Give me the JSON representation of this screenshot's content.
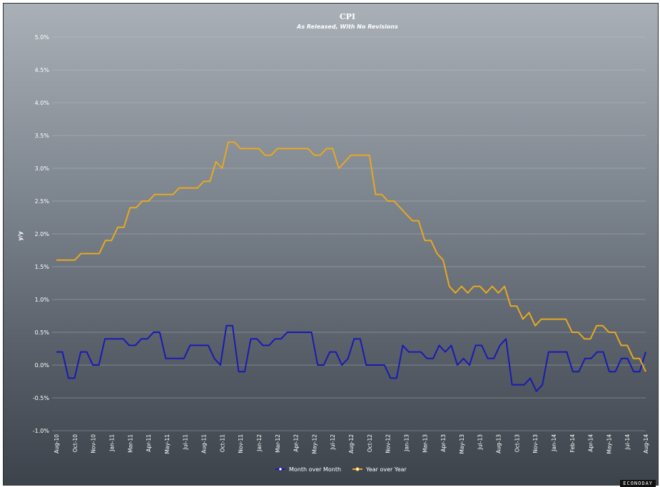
{
  "chart_data": {
    "type": "line",
    "title": "CPI",
    "subtitle": "As Released, With No Revisions",
    "ylabel": "y/y",
    "xlabel": "",
    "ylim": [
      -1.0,
      5.0
    ],
    "yticks": [
      "-1.0%",
      "-0.5%",
      "0.0%",
      "0.5%",
      "1.0%",
      "1.5%",
      "2.0%",
      "2.5%",
      "3.0%",
      "3.5%",
      "4.0%",
      "4.5%",
      "5.0%"
    ],
    "xtick_labels": [
      "Aug-10",
      "Oct-10",
      "Nov-10",
      "Jan-11",
      "Mar-11",
      "Apr-11",
      "May-11",
      "Jul-11",
      "Aug-11",
      "Oct-11",
      "Nov-11",
      "Jan-12",
      "Mar-12",
      "Apr-12",
      "May-12",
      "Jul-12",
      "Aug-12",
      "Oct-12",
      "Nov-12",
      "Jan-13",
      "Mar-13",
      "Apr-13",
      "May-13",
      "Jul-13",
      "Aug-13",
      "Oct-13",
      "Nov-13",
      "Jan-14",
      "Feb-14",
      "Apr-14",
      "May-14",
      "Jul-14",
      "Aug-14"
    ],
    "grid": true,
    "legend_position": "bottom-center",
    "series": [
      {
        "name": "Month over Month",
        "color": "#1a1ab4",
        "values": [
          0.2,
          0.2,
          -0.2,
          -0.2,
          0.2,
          0.2,
          0.0,
          0.0,
          0.4,
          0.4,
          0.4,
          0.4,
          0.3,
          0.3,
          0.4,
          0.4,
          0.5,
          0.5,
          0.1,
          0.1,
          0.1,
          0.1,
          0.3,
          0.3,
          0.3,
          0.3,
          0.1,
          0.0,
          0.6,
          0.6,
          -0.1,
          -0.1,
          0.4,
          0.4,
          0.3,
          0.3,
          0.4,
          0.4,
          0.5,
          0.5,
          0.5,
          0.5,
          0.5,
          0.0,
          0.0,
          0.2,
          0.2,
          0.0,
          0.1,
          0.4,
          0.4,
          0.0,
          0.0,
          0.0,
          0.0,
          -0.2,
          -0.2,
          0.3,
          0.2,
          0.2,
          0.2,
          0.1,
          0.1,
          0.3,
          0.2,
          0.3,
          0.0,
          0.1,
          0.0,
          0.3,
          0.3,
          0.1,
          0.1,
          0.3,
          0.4,
          -0.3,
          -0.3,
          -0.3,
          -0.2,
          -0.4,
          -0.3,
          0.2,
          0.2,
          0.2,
          0.2,
          -0.1,
          -0.1,
          0.1,
          0.1,
          0.2,
          0.2,
          -0.1,
          -0.1,
          0.1,
          0.1,
          -0.1,
          -0.1,
          0.2
        ]
      },
      {
        "name": "Year over Year",
        "color": "#e8a820",
        "values": [
          1.6,
          1.6,
          1.6,
          1.6,
          1.7,
          1.7,
          1.7,
          1.7,
          1.9,
          1.9,
          2.1,
          2.1,
          2.4,
          2.4,
          2.5,
          2.5,
          2.6,
          2.6,
          2.6,
          2.6,
          2.7,
          2.7,
          2.7,
          2.7,
          2.8,
          2.8,
          3.1,
          3.0,
          3.4,
          3.4,
          3.3,
          3.3,
          3.3,
          3.3,
          3.2,
          3.2,
          3.3,
          3.3,
          3.3,
          3.3,
          3.3,
          3.3,
          3.2,
          3.2,
          3.3,
          3.3,
          3.0,
          3.1,
          3.2,
          3.2,
          3.2,
          3.2,
          2.6,
          2.6,
          2.5,
          2.5,
          2.4,
          2.3,
          2.2,
          2.2,
          1.9,
          1.9,
          1.7,
          1.6,
          1.2,
          1.1,
          1.2,
          1.1,
          1.2,
          1.2,
          1.1,
          1.2,
          1.1,
          1.2,
          0.9,
          0.9,
          0.7,
          0.8,
          0.6,
          0.7,
          0.7,
          0.7,
          0.7,
          0.7,
          0.5,
          0.5,
          0.4,
          0.4,
          0.6,
          0.6,
          0.5,
          0.5,
          0.3,
          0.3,
          0.1,
          0.1,
          -0.1
        ]
      }
    ]
  },
  "legend": {
    "mom_label": "Month over Month",
    "yoy_label": "Year over Year"
  },
  "watermark": "ECONODAY"
}
